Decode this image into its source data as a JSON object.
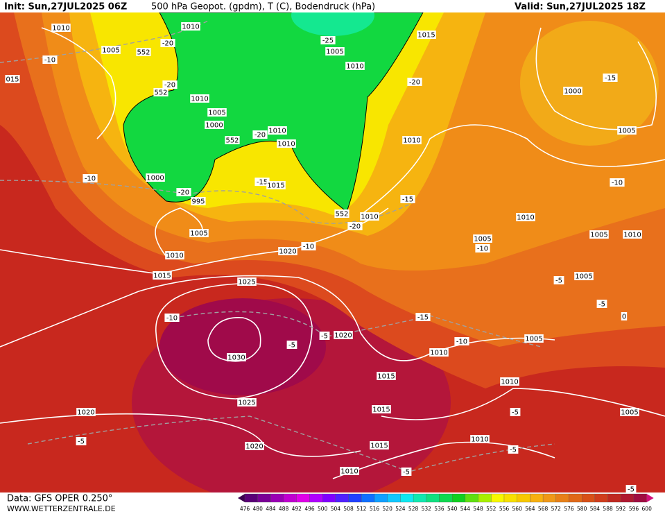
{
  "header": {
    "init": "Init: Sun,27JUL2025 06Z",
    "title": "500 hPa Geopot. (gpdm), T (C), Bodendruck (hPa)",
    "valid": "Valid: Sun,27JUL2025 18Z"
  },
  "footer": {
    "data": "Data: GFS OPER 0.250°",
    "site": "WWW.WETTERZENTRALE.DE"
  },
  "legend": {
    "labels": [
      "476",
      "480",
      "484",
      "488",
      "492",
      "496",
      "500",
      "504",
      "508",
      "512",
      "516",
      "520",
      "524",
      "528",
      "532",
      "536",
      "540",
      "544",
      "548",
      "552",
      "556",
      "560",
      "564",
      "568",
      "572",
      "576",
      "580",
      "584",
      "588",
      "592",
      "596",
      "600"
    ]
  },
  "map": {
    "contour_labels": [
      "1010",
      "1010",
      "1015",
      "1005",
      "552",
      "-20",
      "-25",
      "1005",
      "-10",
      "1010",
      "015",
      "-20",
      "552",
      "1010",
      "-20",
      "-15",
      "1000",
      "1005",
      "1000",
      "-20",
      "1010",
      "552",
      "1010",
      "1010",
      "1005",
      "-10",
      "1000",
      "-20",
      "995",
      "-15",
      "1015",
      "-10",
      "-15",
      "552",
      "1010",
      "-20",
      "1010",
      "1005",
      "1005",
      "1010",
      "1005",
      "-10",
      "1020",
      "-10",
      "1010",
      "1015",
      "-5",
      "1005",
      "1025",
      "-10",
      "-15",
      "1020",
      "-5",
      "-5",
      "-10",
      "1005",
      "1030",
      "1010",
      "1015",
      "1010",
      "1025",
      "1015",
      "-5",
      "1005",
      "1020",
      "-5",
      "1010",
      "1020",
      "1015",
      "-5",
      "1010",
      "-5",
      "-5",
      "0",
      "-5"
    ]
  }
}
